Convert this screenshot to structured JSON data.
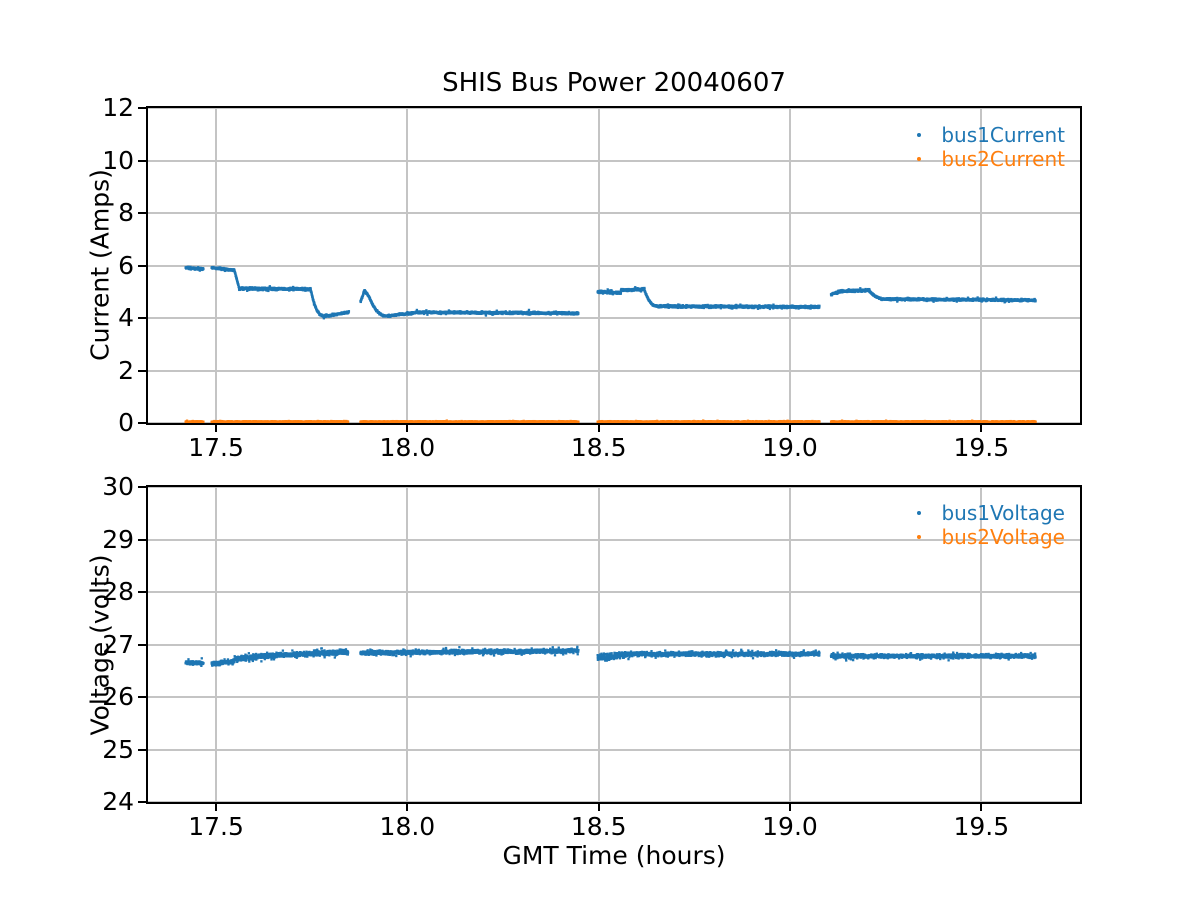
{
  "figure": {
    "title": "SHIS Bus Power 20040607",
    "background": "#ffffff",
    "grid_color": "#c4c4c4",
    "spine_color": "#000000",
    "text_color": "#000000"
  },
  "chart_data": [
    {
      "type": "scatter",
      "title": "SHIS Bus Power 20040607",
      "ylabel": "Current (Amps)",
      "xlabel": "",
      "ylim": [
        0,
        12
      ],
      "yticks": [
        0,
        2,
        4,
        6,
        8,
        10,
        12
      ],
      "ytick_labels": [
        "0",
        "2",
        "4",
        "6",
        "8",
        "10",
        "12"
      ],
      "xlim": [
        17.322,
        19.758
      ],
      "xticks": [
        17.5,
        18.0,
        18.5,
        19.0,
        19.5
      ],
      "xtick_labels": [
        "17.5",
        "18.0",
        "18.5",
        "19.0",
        "19.5"
      ],
      "grid": true,
      "legend_position": "upper right",
      "series": [
        {
          "name": "bus1Current",
          "color": "#1f77b4",
          "marker": "dot",
          "segment_format": [
            "t_start_hours",
            "t_end_hours",
            "value_start",
            "value_end",
            "noise_halfwidth",
            "decay_ease"
          ],
          "segments": [
            [
              17.42,
              17.467,
              5.92,
              5.86,
              0.07,
              0
            ],
            [
              17.488,
              17.548,
              5.92,
              5.82,
              0.06,
              0
            ],
            [
              17.548,
              17.56,
              5.8,
              5.15,
              0.04,
              0
            ],
            [
              17.56,
              17.747,
              5.12,
              5.1,
              0.08,
              0
            ],
            [
              17.747,
              17.78,
              5.08,
              4.08,
              0.05,
              1
            ],
            [
              17.78,
              17.847,
              4.06,
              4.22,
              0.06,
              0
            ],
            [
              17.877,
              17.888,
              4.6,
              5.06,
              0.05,
              0
            ],
            [
              17.888,
              17.9,
              5.06,
              4.8,
              0.05,
              0
            ],
            [
              17.9,
              17.945,
              4.8,
              4.08,
              0.05,
              1
            ],
            [
              17.945,
              18.02,
              4.08,
              4.2,
              0.06,
              0
            ],
            [
              18.02,
              18.447,
              4.22,
              4.18,
              0.07,
              0
            ],
            [
              18.497,
              18.558,
              5.0,
              4.96,
              0.08,
              0
            ],
            [
              18.558,
              18.62,
              5.06,
              5.1,
              0.07,
              0
            ],
            [
              18.62,
              18.652,
              5.04,
              4.45,
              0.05,
              1
            ],
            [
              18.652,
              19.077,
              4.45,
              4.42,
              0.07,
              0
            ],
            [
              19.107,
              19.128,
              4.9,
              5.0,
              0.06,
              0
            ],
            [
              19.128,
              19.208,
              5.02,
              5.06,
              0.07,
              0
            ],
            [
              19.208,
              19.25,
              5.02,
              4.72,
              0.05,
              1
            ],
            [
              19.25,
              19.642,
              4.72,
              4.68,
              0.07,
              0
            ]
          ]
        },
        {
          "name": "bus2Current",
          "color": "#ff7f0e",
          "marker": "dot",
          "segments": [
            [
              17.42,
              17.467,
              0.05,
              0.05,
              0.03,
              0
            ],
            [
              17.488,
              17.845,
              0.05,
              0.05,
              0.03,
              0
            ],
            [
              17.877,
              18.447,
              0.05,
              0.05,
              0.03,
              0
            ],
            [
              18.497,
              19.077,
              0.05,
              0.05,
              0.03,
              0
            ],
            [
              19.107,
              19.642,
              0.05,
              0.05,
              0.03,
              0
            ]
          ]
        }
      ]
    },
    {
      "type": "scatter",
      "title": "",
      "ylabel": "Voltage (volts)",
      "xlabel": "GMT Time (hours)",
      "ylim": [
        24,
        30
      ],
      "yticks": [
        24,
        25,
        26,
        27,
        28,
        29,
        30
      ],
      "ytick_labels": [
        "24",
        "25",
        "26",
        "27",
        "28",
        "29",
        "30"
      ],
      "xlim": [
        17.322,
        19.758
      ],
      "xticks": [
        17.5,
        18.0,
        18.5,
        19.0,
        19.5
      ],
      "xtick_labels": [
        "17.5",
        "18.0",
        "18.5",
        "19.0",
        "19.5"
      ],
      "grid": true,
      "legend_position": "upper right",
      "series": [
        {
          "name": "bus1Voltage",
          "color": "#1f77b4",
          "marker": "dot",
          "segments": [
            [
              17.42,
              17.467,
              26.65,
              26.65,
              0.06,
              0
            ],
            [
              17.488,
              17.548,
              26.63,
              26.68,
              0.06,
              0
            ],
            [
              17.548,
              17.62,
              26.72,
              26.78,
              0.09,
              0
            ],
            [
              17.62,
              17.845,
              26.78,
              26.86,
              0.08,
              0
            ],
            [
              17.877,
              18.447,
              26.84,
              26.88,
              0.06,
              0
            ],
            [
              18.497,
              18.57,
              26.76,
              26.8,
              0.11,
              0
            ],
            [
              18.57,
              19.077,
              26.82,
              26.82,
              0.06,
              0
            ],
            [
              19.107,
              19.642,
              26.78,
              26.78,
              0.06,
              0
            ]
          ]
        },
        {
          "name": "bus2Voltage",
          "color": "#ff7f0e",
          "marker": "dot",
          "visible_points": false,
          "segments": []
        }
      ]
    }
  ]
}
